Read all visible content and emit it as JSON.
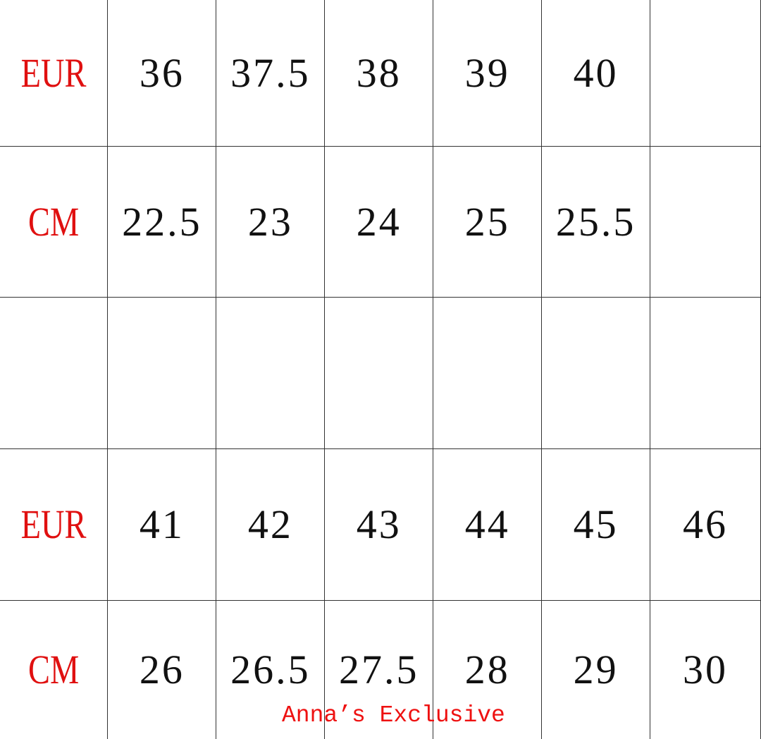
{
  "size_chart": {
    "rows": [
      {
        "label": "EUR",
        "cells": [
          "36",
          "37.5",
          "38",
          "39",
          "40",
          ""
        ]
      },
      {
        "label": "CM",
        "cells": [
          "22.5",
          "23",
          "24",
          "25",
          "25.5",
          ""
        ]
      },
      {
        "label": "",
        "cells": [
          "",
          "",
          "",
          "",
          "",
          ""
        ]
      },
      {
        "label": "EUR",
        "cells": [
          "41",
          "42",
          "43",
          "44",
          "45",
          "46"
        ]
      },
      {
        "label": "CM",
        "cells": [
          "26",
          "26.5",
          "27.5",
          "28",
          "29",
          "30"
        ]
      }
    ],
    "label_color": "#e01010"
  },
  "watermark": "Anna’s Exclusive"
}
